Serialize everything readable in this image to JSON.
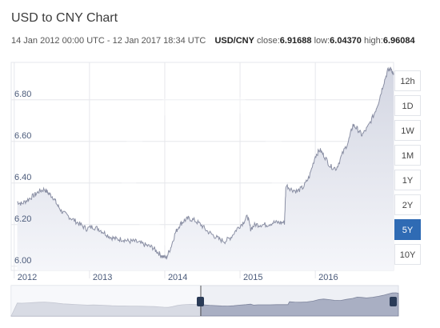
{
  "header": {
    "title": "USD to CNY Chart",
    "date_range": "14 Jan 2012 00:00 UTC - 12 Jan 2017 18:34 UTC",
    "pair": "USD/CNY",
    "close_label": "close:",
    "close_value": "6.91688",
    "low_label": "low:",
    "low_value": "6.04370",
    "high_label": "high:",
    "high_value": "6.96084"
  },
  "range_buttons": [
    {
      "label": "12h",
      "active": false
    },
    {
      "label": "1D",
      "active": false
    },
    {
      "label": "1W",
      "active": false
    },
    {
      "label": "1M",
      "active": false
    },
    {
      "label": "1Y",
      "active": false
    },
    {
      "label": "2Y",
      "active": false
    },
    {
      "label": "5Y",
      "active": true
    },
    {
      "label": "10Y",
      "active": false
    }
  ],
  "colors": {
    "line": "#8a8fa4",
    "fill_top": "#d6d9e4",
    "fill_bottom": "#f4f5f9",
    "grid": "#e6e7ec",
    "active_button": "#2f6bb4"
  },
  "chart_data": {
    "type": "area",
    "series": [
      {
        "name": "USD/CNY",
        "points": [
          [
            2012.04,
            6.31
          ],
          [
            2012.1,
            6.3
          ],
          [
            2012.18,
            6.32
          ],
          [
            2012.26,
            6.34
          ],
          [
            2012.33,
            6.36
          ],
          [
            2012.4,
            6.37
          ],
          [
            2012.46,
            6.35
          ],
          [
            2012.52,
            6.33
          ],
          [
            2012.58,
            6.29
          ],
          [
            2012.64,
            6.26
          ],
          [
            2012.72,
            6.24
          ],
          [
            2012.8,
            6.22
          ],
          [
            2012.88,
            6.2
          ],
          [
            2012.96,
            6.18
          ],
          [
            2013.04,
            6.19
          ],
          [
            2013.12,
            6.18
          ],
          [
            2013.2,
            6.16
          ],
          [
            2013.28,
            6.14
          ],
          [
            2013.36,
            6.13
          ],
          [
            2013.44,
            6.13
          ],
          [
            2013.52,
            6.12
          ],
          [
            2013.6,
            6.12
          ],
          [
            2013.68,
            6.11
          ],
          [
            2013.76,
            6.1
          ],
          [
            2013.84,
            6.09
          ],
          [
            2013.9,
            6.07
          ],
          [
            2013.96,
            6.05
          ],
          [
            2014.02,
            6.04
          ],
          [
            2014.08,
            6.09
          ],
          [
            2014.14,
            6.16
          ],
          [
            2014.2,
            6.2
          ],
          [
            2014.26,
            6.22
          ],
          [
            2014.32,
            6.23
          ],
          [
            2014.4,
            6.22
          ],
          [
            2014.48,
            6.2
          ],
          [
            2014.56,
            6.17
          ],
          [
            2014.64,
            6.15
          ],
          [
            2014.72,
            6.13
          ],
          [
            2014.8,
            6.12
          ],
          [
            2014.88,
            6.14
          ],
          [
            2014.96,
            6.18
          ],
          [
            2015.04,
            6.21
          ],
          [
            2015.1,
            6.24
          ],
          [
            2015.14,
            6.18
          ],
          [
            2015.2,
            6.2
          ],
          [
            2015.28,
            6.2
          ],
          [
            2015.36,
            6.2
          ],
          [
            2015.44,
            6.21
          ],
          [
            2015.52,
            6.21
          ],
          [
            2015.59,
            6.21
          ],
          [
            2015.61,
            6.39
          ],
          [
            2015.68,
            6.37
          ],
          [
            2015.76,
            6.36
          ],
          [
            2015.84,
            6.38
          ],
          [
            2015.92,
            6.43
          ],
          [
            2016.0,
            6.53
          ],
          [
            2016.06,
            6.56
          ],
          [
            2016.12,
            6.53
          ],
          [
            2016.2,
            6.48
          ],
          [
            2016.28,
            6.47
          ],
          [
            2016.36,
            6.54
          ],
          [
            2016.44,
            6.6
          ],
          [
            2016.5,
            6.68
          ],
          [
            2016.56,
            6.66
          ],
          [
            2016.62,
            6.63
          ],
          [
            2016.7,
            6.67
          ],
          [
            2016.78,
            6.73
          ],
          [
            2016.84,
            6.79
          ],
          [
            2016.9,
            6.87
          ],
          [
            2016.96,
            6.94
          ],
          [
            2017.01,
            6.95
          ],
          [
            2017.04,
            6.92
          ]
        ]
      }
    ],
    "x_tick_labels": [
      "2012",
      "2013",
      "2014",
      "2015",
      "2016"
    ],
    "x_ticks": [
      2012,
      2013,
      2014,
      2015,
      2016
    ],
    "y_tick_labels": [
      "6.00",
      "6.20",
      "6.40",
      "6.60",
      "6.80"
    ],
    "y_ticks": [
      6.0,
      6.2,
      6.4,
      6.6,
      6.8
    ],
    "xlim": [
      2011.96,
      2017.04
    ],
    "ylim": [
      5.98,
      6.98
    ],
    "grid": true,
    "legend": "none"
  }
}
